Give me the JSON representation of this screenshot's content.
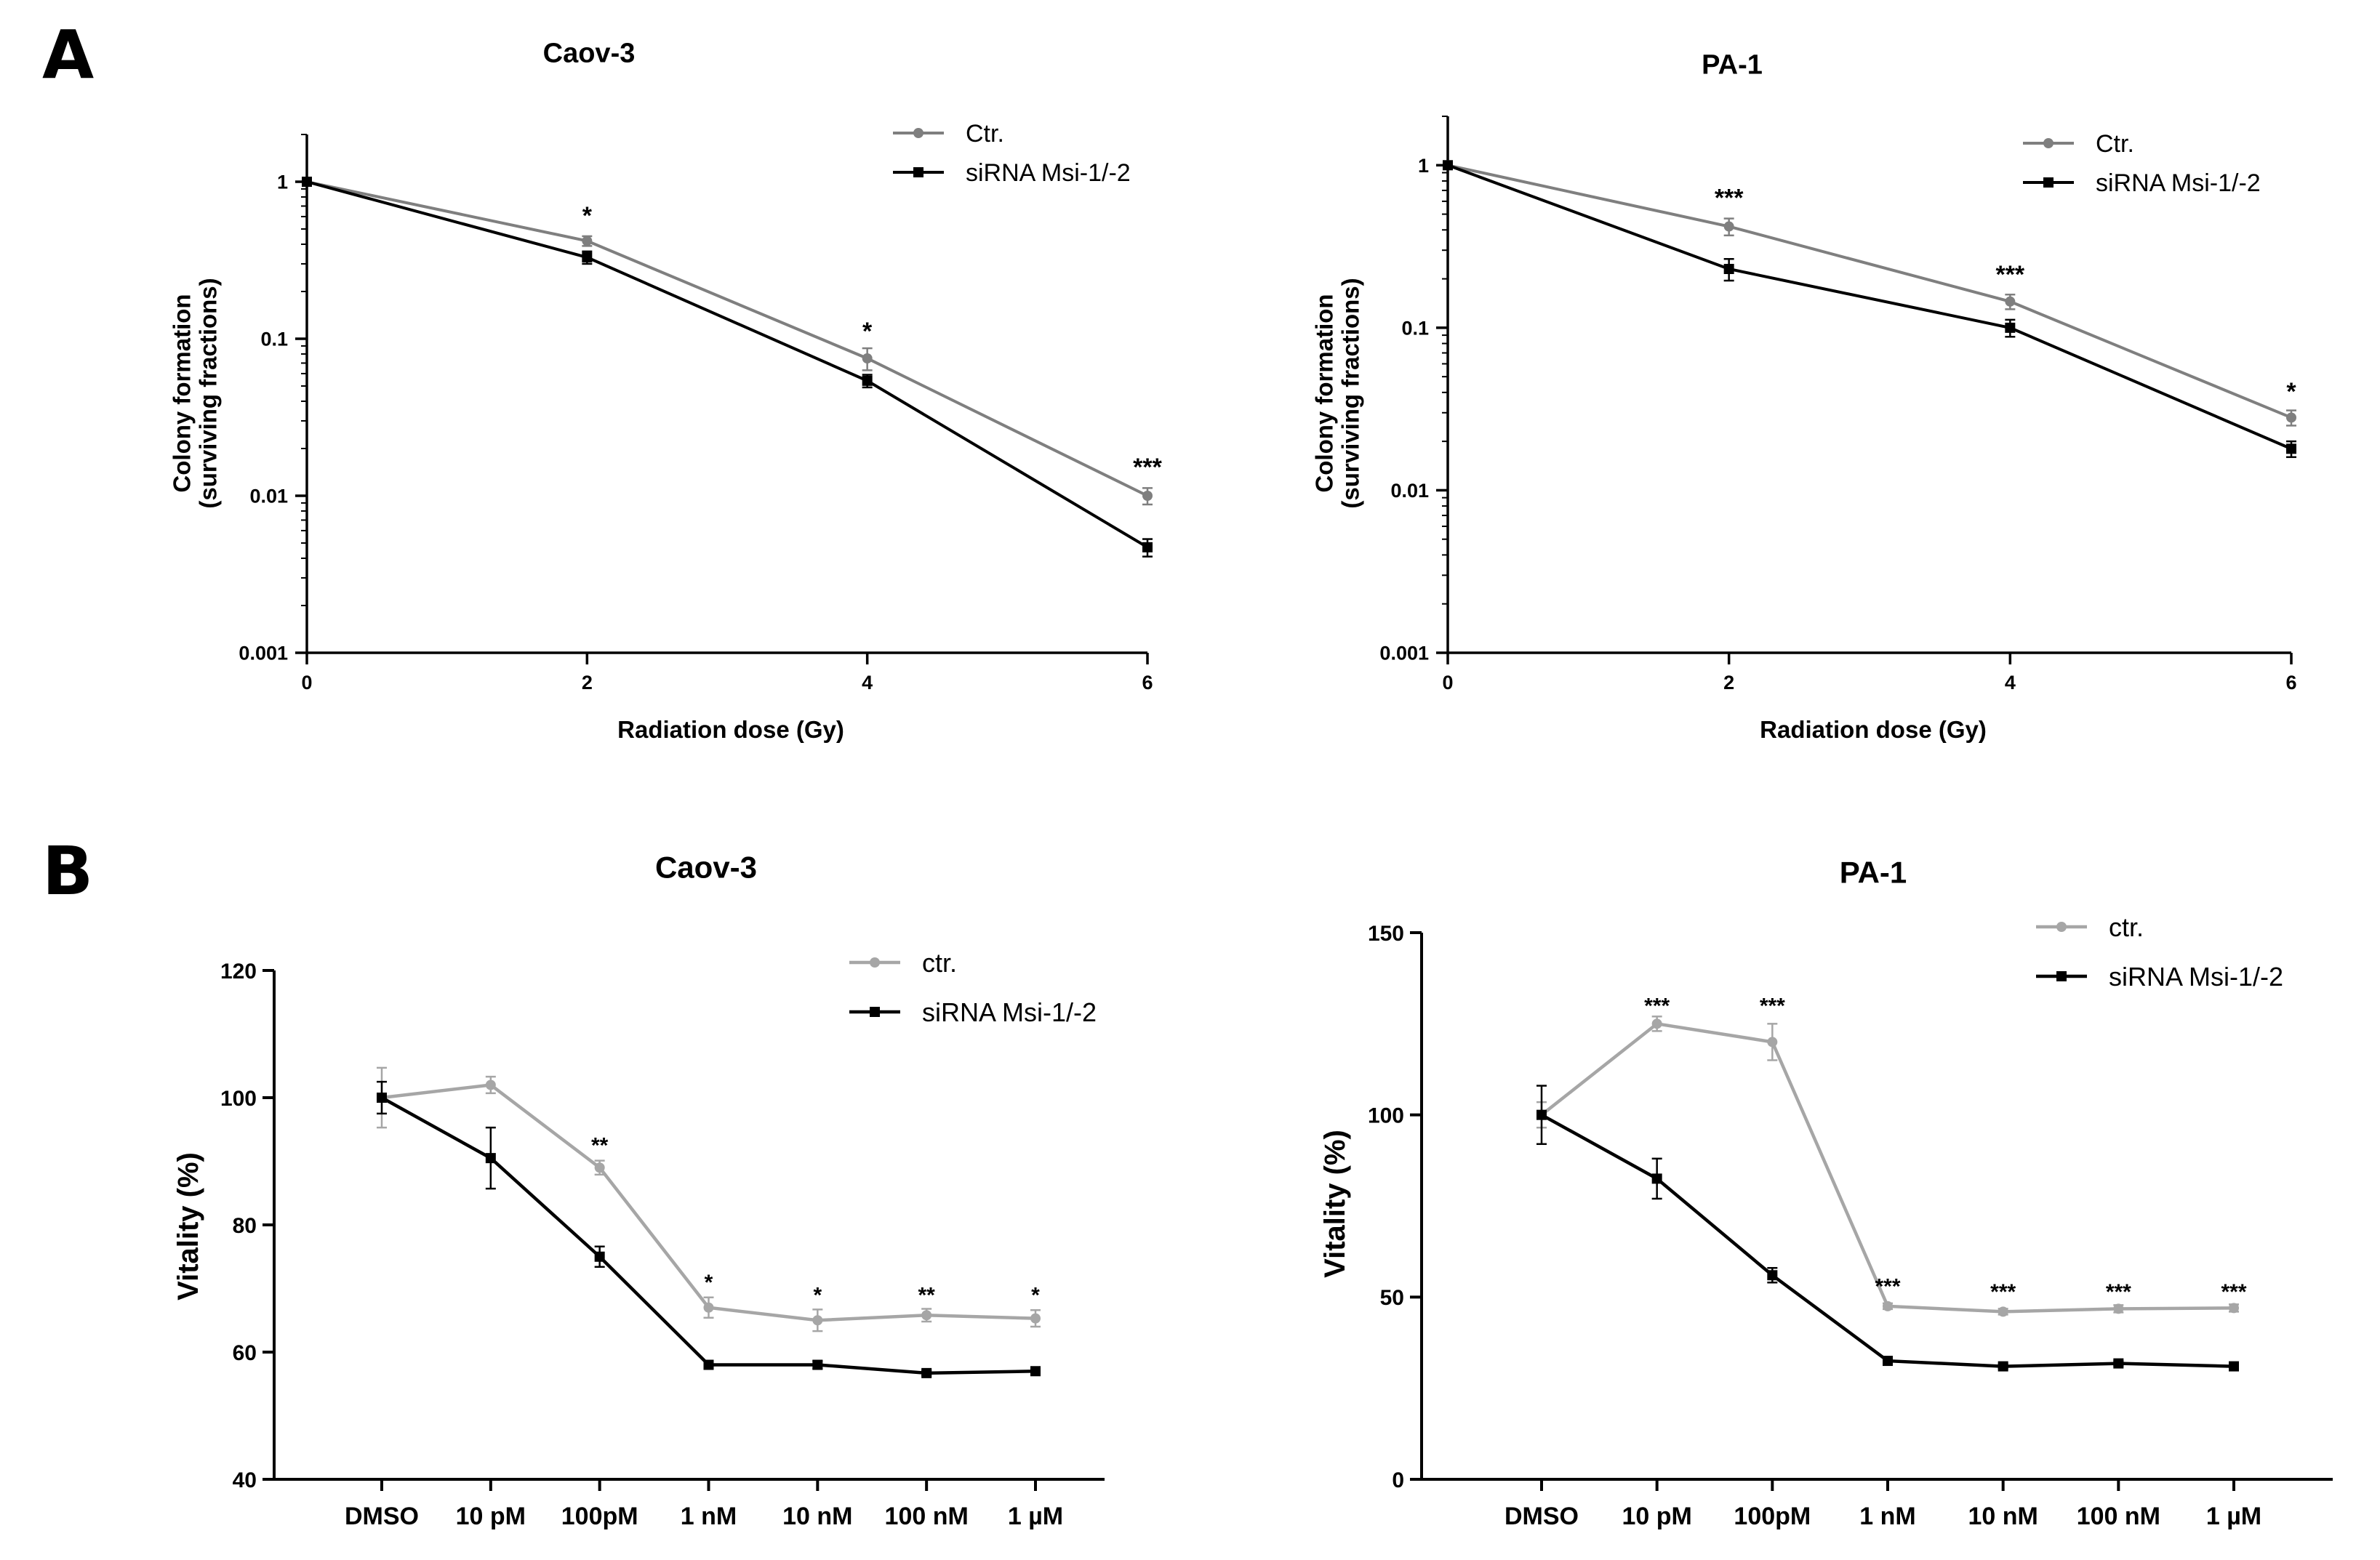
{
  "figure": {
    "panel_labels": [
      "A",
      "B"
    ]
  },
  "colors": {
    "ctr_a": "#7f7f7f",
    "ctr_b": "#a6a6a6",
    "sirna": "#000000",
    "axis": "#000000"
  },
  "chart_data": [
    {
      "id": "a-caov3",
      "type": "line",
      "yscale": "log",
      "title": "Caov-3",
      "xlabel": "Radiation dose (Gy)",
      "ylabel": [
        "Colony formation",
        "(surviving fractions)"
      ],
      "xlim": [
        0,
        6
      ],
      "ylim": [
        0.001,
        2
      ],
      "xticks": [
        0,
        2,
        4,
        6
      ],
      "xtick_labels": [
        "0",
        "2",
        "4",
        "6"
      ],
      "yticks": [
        0.001,
        0.01,
        0.1,
        1
      ],
      "ytick_labels": [
        "0.001",
        "0.01",
        "0.1",
        "1"
      ],
      "legend": [
        "Ctr.",
        "siRNA Msi-1/-2"
      ],
      "x": [
        0,
        2,
        4,
        6
      ],
      "series": [
        {
          "name": "Ctr.",
          "values": [
            1,
            0.42,
            0.075,
            0.01
          ],
          "errors": [
            0.04,
            0.03,
            0.012,
            0.0012
          ],
          "color": "#7f7f7f",
          "marker": "circle"
        },
        {
          "name": "siRNA Msi-1/-2",
          "values": [
            1,
            0.33,
            0.054,
            0.0047
          ],
          "errors": [
            0.04,
            0.03,
            0.005,
            0.0006
          ],
          "color": "#000000",
          "marker": "square"
        }
      ],
      "annotations": [
        {
          "x": 2,
          "y": 0.6,
          "text": "*"
        },
        {
          "x": 4,
          "y": 0.11,
          "text": "*"
        },
        {
          "x": 6,
          "y": 0.015,
          "text": "***"
        }
      ]
    },
    {
      "id": "a-pa1",
      "type": "line",
      "yscale": "log",
      "title": "PA-1",
      "xlabel": "Radiation dose (Gy)",
      "ylabel": [
        "Colony formation",
        "(surviving fractions)"
      ],
      "xlim": [
        0,
        6
      ],
      "ylim": [
        0.001,
        2
      ],
      "xticks": [
        0,
        2,
        4,
        6
      ],
      "xtick_labels": [
        "0",
        "2",
        "4",
        "6"
      ],
      "yticks": [
        0.001,
        0.01,
        0.1,
        1
      ],
      "ytick_labels": [
        "0.001",
        "0.01",
        "0.1",
        "1"
      ],
      "legend": [
        "Ctr.",
        "siRNA Msi-1/-2"
      ],
      "x": [
        0,
        2,
        4,
        6
      ],
      "series": [
        {
          "name": "Ctr.",
          "values": [
            1,
            0.42,
            0.145,
            0.028
          ],
          "errors": [
            0.04,
            0.05,
            0.015,
            0.003
          ],
          "color": "#7f7f7f",
          "marker": "circle"
        },
        {
          "name": "siRNA Msi-1/-2",
          "values": [
            1,
            0.23,
            0.1,
            0.018
          ],
          "errors": [
            0.04,
            0.035,
            0.012,
            0.002
          ],
          "color": "#000000",
          "marker": "square"
        }
      ],
      "annotations": [
        {
          "x": 2,
          "y": 0.62,
          "text": "***"
        },
        {
          "x": 4,
          "y": 0.21,
          "text": "***"
        },
        {
          "x": 6,
          "y": 0.04,
          "text": "*"
        }
      ]
    },
    {
      "id": "b-caov3",
      "type": "line",
      "yscale": "linear",
      "title": "Caov-3",
      "xlabel": "",
      "ylabel": [
        "Vitality (%)"
      ],
      "ylim": [
        40,
        120
      ],
      "yticks": [
        40,
        60,
        80,
        100,
        120
      ],
      "ytick_labels": [
        "40",
        "60",
        "80",
        "100",
        "120"
      ],
      "categories": [
        "DMSO",
        "10 pM",
        "100pM",
        "1 nM",
        "10 nM",
        "100 nM",
        "1 µM"
      ],
      "legend": [
        "ctr.",
        "siRNA Msi-1/-2"
      ],
      "series": [
        {
          "name": "ctr.",
          "values": [
            100,
            102,
            89,
            67,
            65,
            65.8,
            65.3
          ],
          "errors": [
            4.7,
            1.3,
            1.1,
            1.6,
            1.7,
            1.0,
            1.3
          ],
          "color": "#a6a6a6",
          "marker": "circle"
        },
        {
          "name": "siRNA Msi-1/-2",
          "values": [
            100,
            90.5,
            75,
            58,
            58,
            56.7,
            57
          ],
          "errors": [
            2.5,
            4.8,
            1.6,
            0.6,
            0.6,
            0.4,
            0.4
          ],
          "color": "#000000",
          "marker": "square"
        }
      ],
      "annotations": [
        {
          "x": 2,
          "y": 92.5,
          "text": "**"
        },
        {
          "x": 3,
          "y": 71,
          "text": "*"
        },
        {
          "x": 4,
          "y": 69,
          "text": "*"
        },
        {
          "x": 5,
          "y": 69,
          "text": "**"
        },
        {
          "x": 6,
          "y": 69,
          "text": "*"
        }
      ]
    },
    {
      "id": "b-pa1",
      "type": "line",
      "yscale": "linear",
      "title": "PA-1",
      "xlabel": "",
      "ylabel": [
        "Vitality (%)"
      ],
      "ylim": [
        0,
        150
      ],
      "yticks": [
        0,
        50,
        100,
        150
      ],
      "ytick_labels": [
        "0",
        "50",
        "100",
        "150"
      ],
      "categories": [
        "DMSO",
        "10 pM",
        "100pM",
        "1 nM",
        "10 nM",
        "100 nM",
        "1 µM"
      ],
      "legend": [
        "ctr.",
        "siRNA Msi-1/-2"
      ],
      "series": [
        {
          "name": "ctr.",
          "values": [
            100,
            125,
            120,
            47.5,
            46,
            46.8,
            47
          ],
          "errors": [
            3.5,
            2.0,
            5.0,
            0.8,
            0.8,
            1.0,
            1.0
          ],
          "color": "#a6a6a6",
          "marker": "circle"
        },
        {
          "name": "siRNA Msi-1/-2",
          "values": [
            100,
            82.5,
            56,
            32.5,
            31,
            31.8,
            31
          ],
          "errors": [
            8.0,
            5.5,
            2.0,
            0.6,
            0.6,
            0.6,
            0.6
          ],
          "color": "#000000",
          "marker": "square"
        }
      ],
      "annotations": [
        {
          "x": 1,
          "y": 130,
          "text": "***"
        },
        {
          "x": 2,
          "y": 130,
          "text": "***"
        },
        {
          "x": 3,
          "y": 53,
          "text": "***"
        },
        {
          "x": 4,
          "y": 51.5,
          "text": "***"
        },
        {
          "x": 5,
          "y": 51.5,
          "text": "***"
        },
        {
          "x": 6,
          "y": 51.5,
          "text": "***"
        }
      ]
    }
  ]
}
